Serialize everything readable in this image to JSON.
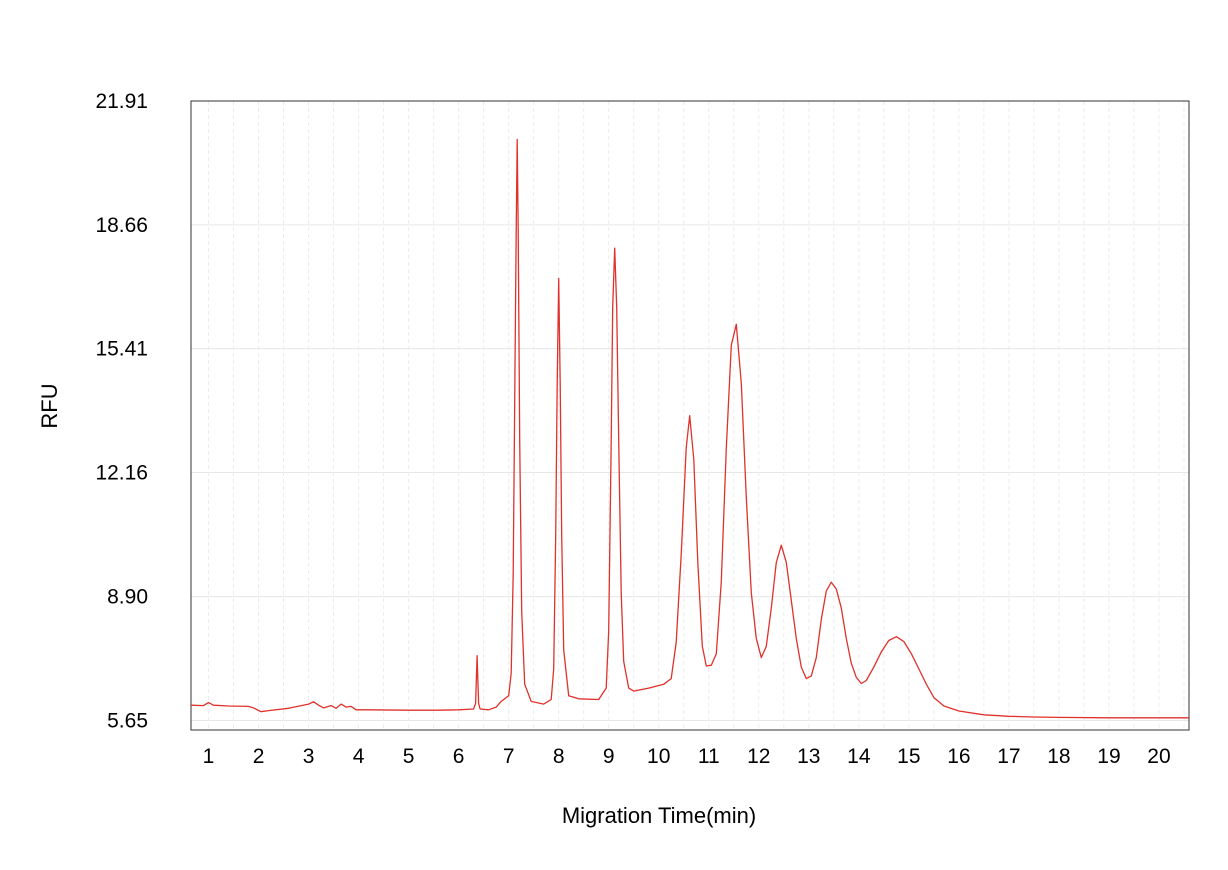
{
  "chart_data": {
    "type": "line",
    "title": "",
    "xlabel": "Migration Time(min)",
    "ylabel": "RFU",
    "xlim": [
      0.65,
      20.6
    ],
    "ylim": [
      5.4,
      21.91
    ],
    "y_ticks": [
      "21.91",
      "18.66",
      "15.41",
      "12.16",
      "8.90",
      "5.65"
    ],
    "x_ticks": [
      "1",
      "2",
      "3",
      "4",
      "5",
      "6",
      "7",
      "8",
      "9",
      "10",
      "11",
      "12",
      "13",
      "14",
      "15",
      "16",
      "17",
      "18",
      "19",
      "20"
    ],
    "grid": true,
    "legend": "none",
    "series": [
      {
        "color": "#e0312b",
        "points": [
          [
            0.65,
            6.05
          ],
          [
            0.9,
            6.04
          ],
          [
            1.0,
            6.12
          ],
          [
            1.1,
            6.05
          ],
          [
            1.4,
            6.03
          ],
          [
            1.8,
            6.02
          ],
          [
            1.9,
            5.98
          ],
          [
            2.05,
            5.88
          ],
          [
            2.2,
            5.91
          ],
          [
            2.6,
            5.97
          ],
          [
            3.0,
            6.08
          ],
          [
            3.1,
            6.14
          ],
          [
            3.2,
            6.05
          ],
          [
            3.3,
            5.98
          ],
          [
            3.45,
            6.04
          ],
          [
            3.55,
            5.97
          ],
          [
            3.65,
            6.08
          ],
          [
            3.75,
            6.0
          ],
          [
            3.85,
            6.02
          ],
          [
            3.95,
            5.93
          ],
          [
            4.2,
            5.93
          ],
          [
            5.0,
            5.92
          ],
          [
            5.6,
            5.92
          ],
          [
            6.0,
            5.93
          ],
          [
            6.3,
            5.95
          ],
          [
            6.34,
            6.1
          ],
          [
            6.37,
            7.35
          ],
          [
            6.4,
            6.1
          ],
          [
            6.43,
            5.95
          ],
          [
            6.6,
            5.93
          ],
          [
            6.75,
            6.0
          ],
          [
            6.85,
            6.15
          ],
          [
            6.95,
            6.25
          ],
          [
            7.0,
            6.3
          ],
          [
            7.05,
            6.9
          ],
          [
            7.09,
            9.5
          ],
          [
            7.12,
            14.0
          ],
          [
            7.15,
            18.5
          ],
          [
            7.17,
            20.9
          ],
          [
            7.19,
            18.5
          ],
          [
            7.22,
            13.0
          ],
          [
            7.26,
            8.5
          ],
          [
            7.32,
            6.6
          ],
          [
            7.45,
            6.15
          ],
          [
            7.7,
            6.08
          ],
          [
            7.85,
            6.2
          ],
          [
            7.9,
            7.0
          ],
          [
            7.94,
            10.5
          ],
          [
            7.97,
            14.5
          ],
          [
            8.0,
            17.25
          ],
          [
            8.03,
            14.5
          ],
          [
            8.06,
            10.5
          ],
          [
            8.1,
            7.5
          ],
          [
            8.2,
            6.3
          ],
          [
            8.4,
            6.22
          ],
          [
            8.8,
            6.2
          ],
          [
            8.95,
            6.5
          ],
          [
            9.0,
            8.0
          ],
          [
            9.05,
            13.0
          ],
          [
            9.08,
            16.5
          ],
          [
            9.12,
            18.05
          ],
          [
            9.16,
            16.5
          ],
          [
            9.2,
            13.0
          ],
          [
            9.25,
            9.0
          ],
          [
            9.3,
            7.2
          ],
          [
            9.4,
            6.5
          ],
          [
            9.5,
            6.42
          ],
          [
            9.8,
            6.5
          ],
          [
            10.1,
            6.6
          ],
          [
            10.25,
            6.75
          ],
          [
            10.35,
            7.7
          ],
          [
            10.45,
            10.0
          ],
          [
            10.55,
            12.8
          ],
          [
            10.62,
            13.65
          ],
          [
            10.7,
            12.5
          ],
          [
            10.78,
            9.8
          ],
          [
            10.87,
            7.6
          ],
          [
            10.95,
            7.08
          ],
          [
            11.05,
            7.1
          ],
          [
            11.15,
            7.4
          ],
          [
            11.25,
            9.3
          ],
          [
            11.35,
            12.8
          ],
          [
            11.45,
            15.5
          ],
          [
            11.55,
            16.05
          ],
          [
            11.65,
            14.5
          ],
          [
            11.75,
            11.5
          ],
          [
            11.85,
            9.0
          ],
          [
            11.95,
            7.8
          ],
          [
            12.05,
            7.3
          ],
          [
            12.15,
            7.6
          ],
          [
            12.25,
            8.6
          ],
          [
            12.35,
            9.8
          ],
          [
            12.45,
            10.25
          ],
          [
            12.55,
            9.8
          ],
          [
            12.65,
            8.8
          ],
          [
            12.75,
            7.8
          ],
          [
            12.85,
            7.05
          ],
          [
            12.95,
            6.75
          ],
          [
            13.05,
            6.82
          ],
          [
            13.15,
            7.3
          ],
          [
            13.25,
            8.3
          ],
          [
            13.35,
            9.05
          ],
          [
            13.45,
            9.28
          ],
          [
            13.55,
            9.1
          ],
          [
            13.65,
            8.6
          ],
          [
            13.75,
            7.8
          ],
          [
            13.85,
            7.15
          ],
          [
            13.95,
            6.78
          ],
          [
            14.05,
            6.62
          ],
          [
            14.15,
            6.7
          ],
          [
            14.3,
            7.05
          ],
          [
            14.45,
            7.45
          ],
          [
            14.6,
            7.75
          ],
          [
            14.75,
            7.85
          ],
          [
            14.9,
            7.72
          ],
          [
            15.05,
            7.4
          ],
          [
            15.2,
            7.0
          ],
          [
            15.35,
            6.6
          ],
          [
            15.5,
            6.25
          ],
          [
            15.7,
            6.03
          ],
          [
            16.0,
            5.9
          ],
          [
            16.5,
            5.8
          ],
          [
            17.0,
            5.76
          ],
          [
            17.5,
            5.74
          ],
          [
            18.0,
            5.73
          ],
          [
            19.0,
            5.72
          ],
          [
            20.0,
            5.72
          ],
          [
            20.6,
            5.72
          ]
        ]
      }
    ]
  }
}
